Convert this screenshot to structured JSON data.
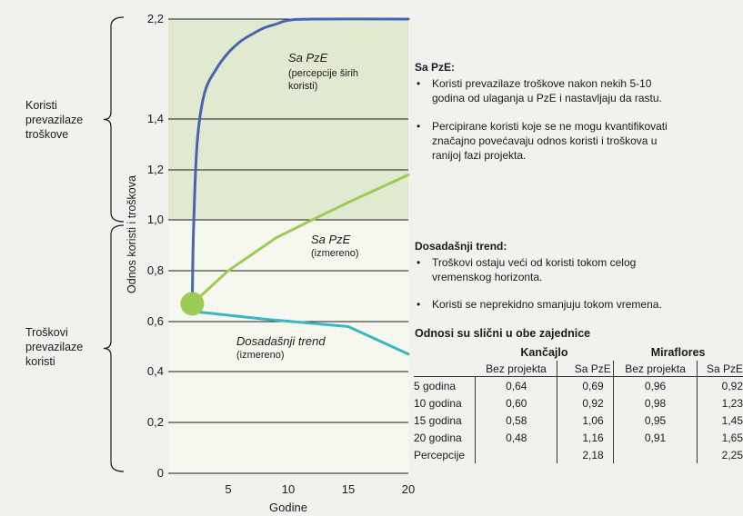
{
  "chart_data": {
    "type": "line",
    "ylabel": "Odnos koristi i troškova",
    "xlabel": "Godine",
    "xlim": [
      0,
      20
    ],
    "ylim": [
      0,
      2.2
    ],
    "xticks": [
      5,
      10,
      15,
      20
    ],
    "yticks": [
      0,
      0.2,
      0.4,
      0.6,
      0.8,
      1.0,
      1.2,
      1.4,
      2.2
    ],
    "ytick_labels": [
      "0",
      "0,2",
      "0,4",
      "0,6",
      "0,8",
      "1,0",
      "1,2",
      "1,4",
      "2,2"
    ],
    "start_point": {
      "x": 2,
      "y": 0.67
    },
    "series": [
      {
        "name": "Sa PzE",
        "annotation": "(percepcije širih koristi)",
        "color": "#4a63b1",
        "x": [
          2,
          2.1,
          2.4,
          3,
          4,
          5,
          6,
          7,
          8,
          9,
          10,
          12,
          20
        ],
        "y": [
          0.67,
          0.95,
          1.3,
          1.6,
          1.8,
          1.93,
          2.02,
          2.08,
          2.13,
          2.16,
          2.19,
          2.2,
          2.2
        ]
      },
      {
        "name": "Sa PzE",
        "annotation": "(izmereno)",
        "color": "#9ccb56",
        "x": [
          2,
          5,
          9,
          12,
          15,
          20
        ],
        "y": [
          0.67,
          0.8,
          0.93,
          1.0,
          1.07,
          1.18
        ]
      },
      {
        "name": "Dosadašnji trend",
        "annotation": "(izmereno)",
        "color": "#3bb7c4",
        "x": [
          2,
          8,
          15,
          20
        ],
        "y": [
          0.64,
          0.61,
          0.58,
          0.47
        ]
      }
    ],
    "shaded_regions": [
      {
        "y_from": 1.0,
        "y_to": 2.2,
        "color": "#e1e9d0"
      },
      {
        "y_from": 0,
        "y_to": 1.0,
        "color": "#f6f8ef"
      }
    ]
  },
  "side_labels": {
    "upper": "Koristi\nprevazilaze\ntroškove",
    "lower": "Troškovi\nprevazilaze\nkoristi"
  },
  "series_labels": {
    "blue_title": "Sa PzE",
    "blue_note": "(percepcije širih koristi)",
    "green_title": "Sa PzE",
    "green_note": "(izmereno)",
    "teal_title": "Dosadašnji trend",
    "teal_note": "(izmereno)"
  },
  "notes": {
    "sa_pze_heading": "Sa PzE:",
    "sa_pze_items": [
      "Koristi prevazilaze troškove nakon nekih 5-10 godina od ulaganja u PzE i nastavljaju da rastu.",
      "Percipirane koristi koje se ne mogu kvantifikovati značajno povećavaju odnos koristi i troškova u ranijoj fazi projekta."
    ],
    "trend_heading": "Dosadašnji trend:",
    "trend_items": [
      "Troškovi ostaju veći od koristi tokom celog vremenskog horizonta.",
      "Koristi se neprekidno smanjuju tokom vremena."
    ]
  },
  "table": {
    "title": "Odnosi su slični u obe zajednice",
    "groups": [
      "Kančajlo",
      "Miraflores"
    ],
    "subheaders": [
      "Bez projekta",
      "Sa PzE",
      "Bez projekta",
      "Sa PzE"
    ],
    "rows": [
      {
        "label": "5 godina",
        "values": [
          "0,64",
          "0,69",
          "0,96",
          "0,92"
        ]
      },
      {
        "label": "10 godina",
        "values": [
          "0,60",
          "0,92",
          "0,98",
          "1,23"
        ]
      },
      {
        "label": "15 godina",
        "values": [
          "0,58",
          "1,06",
          "0,95",
          "1,45"
        ]
      },
      {
        "label": "20 godina",
        "values": [
          "0,48",
          "1,16",
          "0,91",
          "1,65"
        ]
      },
      {
        "label": "Percepcije",
        "values": [
          "",
          "2,18",
          "",
          "2,25"
        ]
      }
    ]
  }
}
